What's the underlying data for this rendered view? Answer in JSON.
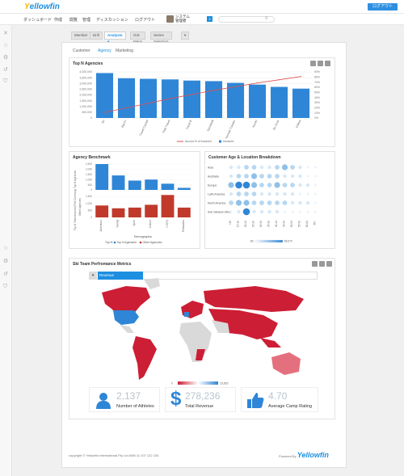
{
  "header": {
    "logo_a": "Y",
    "logo_b": "ellowfin",
    "logout": "ログアウト"
  },
  "nav": {
    "items": [
      "ダッシュボード",
      "作成",
      "閲覧",
      "管理",
      "ディスカッション",
      "ログアウト"
    ],
    "user_line1": "システム",
    "user_line2": "管理者",
    "badge": "3"
  },
  "tabs": [
    "Member",
    "Drill",
    "Analysis ▾",
    "GIS Maps",
    "Series Selection",
    "▾"
  ],
  "subtabs": [
    "Customer",
    "Agency",
    "Marketing"
  ],
  "panels": {
    "top_n": {
      "title": "Top N Agencies"
    },
    "benchmark": {
      "title": "Agency Benchmark"
    },
    "age_loc": {
      "title": "Customer Age & Location Breakdown"
    },
    "ski": {
      "title": "Ski Team Perfromance Metrics",
      "map_label": "Revenue"
    }
  },
  "colors": {
    "bar": "#2f86d6",
    "line": "#e05050",
    "red": "#c0392b",
    "map_red": "#cc1e35",
    "accent": "#1d8fe0"
  },
  "chart_data": [
    {
      "type": "bar",
      "title": "Top N Agencies",
      "categories": [
        "Bu",
        "Big Fu",
        "Travel Capital",
        "Total Travel",
        "Travel B",
        "Sportdodt",
        "Nomad Traveler",
        "Kiyoto",
        "Bu Zone",
        "Voltest"
      ],
      "values": [
        3900000,
        3450000,
        3400000,
        3350000,
        3250000,
        3200000,
        3050000,
        2900000,
        2700000,
        2550000
      ],
      "yticks": [
        "4,000,000",
        "3,500,000",
        "3,000,000",
        "2,500,000",
        "2,000,000",
        "1,500,000",
        "1,000,000",
        "500,000",
        "0"
      ],
      "y2ticks": [
        "90%",
        "80%",
        "70%",
        "60%",
        "50%",
        "40%",
        "30%",
        "20%",
        "10%",
        "0%"
      ],
      "line_values": [
        12,
        22,
        32,
        42,
        51,
        60,
        68,
        76,
        83,
        90
      ],
      "legend": [
        "Accum % of Invoiced",
        "Invoiced"
      ],
      "ylim": [
        0,
        4000000
      ]
    },
    {
      "type": "bar",
      "title": "Agency Benchmark",
      "categories": [
        "Adventure",
        "Family",
        "Sport",
        "Culture",
        "Luxury",
        "Relaxation"
      ],
      "series": [
        {
          "name": "Top N Agencies",
          "values": [
            2500,
            1400,
            900,
            1000,
            600,
            200
          ]
        },
        {
          "name": "Other Agencies",
          "values": [
            850,
            650,
            700,
            900,
            1600,
            700
          ]
        }
      ],
      "ylabel": "Top N Total Invoiced (Prof Currency) Top N Agencies",
      "ylabel2": "Other Agencies",
      "xlabel": "Demographic",
      "legend_label": "Top N:",
      "yticks_top": [
        "2,500",
        "2,000",
        "1,500",
        "1,000",
        "500",
        "0"
      ],
      "yticks_bottom": [
        "1,500",
        "1,000",
        "500",
        "0"
      ]
    },
    {
      "type": "heatmap",
      "title": "Customer Age & Location Breakdown",
      "rows": [
        "Asia",
        "Australia",
        "Europe",
        "Latin America",
        "North America",
        "Sub Saharan Africa"
      ],
      "cols": [
        "<15",
        "15-19",
        "20-24",
        "25-29",
        "30-34",
        "35-39",
        "40-44",
        "45-49",
        "50-54",
        "55-59",
        "60-64",
        "65+"
      ],
      "values": [
        [
          2,
          2,
          3,
          3,
          2,
          2,
          3,
          4,
          3,
          2,
          1,
          1
        ],
        [
          2,
          3,
          3,
          4,
          3,
          3,
          3,
          2,
          2,
          2,
          1,
          1
        ],
        [
          4,
          5,
          5,
          4,
          3,
          3,
          4,
          3,
          3,
          2,
          2,
          1
        ],
        [
          2,
          3,
          3,
          3,
          2,
          2,
          2,
          2,
          2,
          1,
          1,
          1
        ],
        [
          3,
          4,
          4,
          3,
          3,
          3,
          3,
          3,
          2,
          2,
          2,
          1
        ],
        [
          1,
          2,
          5,
          2,
          2,
          2,
          2,
          1,
          1,
          1,
          1,
          1
        ]
      ],
      "scale_min": "$0",
      "scale_max": "$6,570"
    }
  ],
  "map": {
    "scale_min": "0",
    "scale_max": "15,852"
  },
  "kpis": [
    {
      "value": "2,137",
      "label": "Number of Athletes",
      "icon": "person-icon"
    },
    {
      "value": "278,236",
      "label": "Total Revenue",
      "icon": "dollar-icon"
    },
    {
      "value": "4.70",
      "label": "Average Camp Rating",
      "icon": "thumbs-up-icon"
    }
  ],
  "footer": {
    "copyright": "copyright © Yellowfin International Pty Ltd ABN 11 107 122 234",
    "powered": "Powered By",
    "brand": "Yellowfin"
  }
}
